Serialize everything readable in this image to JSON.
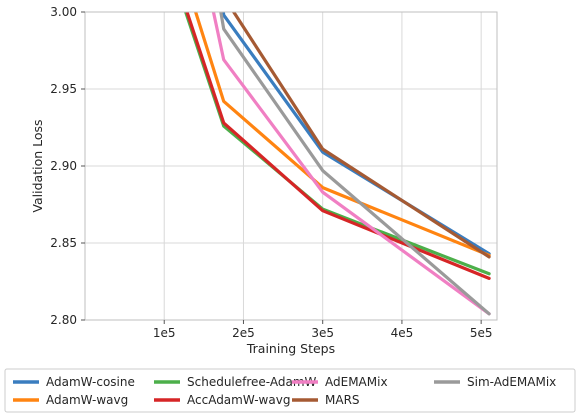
{
  "chart_data": {
    "type": "line",
    "title": "",
    "xlabel": "Training Steps",
    "ylabel": "Validation Loss",
    "xlim": [
      0,
      520000
    ],
    "ylim": [
      2.8,
      3.0
    ],
    "xticks": [
      100000,
      200000,
      300000,
      400000,
      500000
    ],
    "xtick_labels": [
      "1e5",
      "2e5",
      "3e5",
      "4e5",
      "5e5"
    ],
    "yticks": [
      2.8,
      2.85,
      2.9,
      2.95,
      3.0
    ],
    "ytick_labels": [
      "2.80",
      "2.85",
      "2.90",
      "2.95",
      "3.00"
    ],
    "grid": true,
    "legend_position": "bottom-outside",
    "series": [
      {
        "name": "AdamW-cosine",
        "color": "#3a7dbf",
        "x": [
          160000,
          175000,
          300000,
          510000
        ],
        "y": [
          3.06,
          2.998,
          2.909,
          2.843
        ]
      },
      {
        "name": "AdamW-wavg",
        "color": "#ff8411",
        "x": [
          100000,
          175000,
          300000,
          510000
        ],
        "y": [
          3.065,
          2.942,
          2.886,
          2.842
        ]
      },
      {
        "name": "Schedulefree-AdamW",
        "color": "#4caf4a",
        "x": [
          85000,
          175000,
          300000,
          510000
        ],
        "y": [
          3.065,
          2.926,
          2.872,
          2.83
        ]
      },
      {
        "name": "AccAdamW-wavg",
        "color": "#d62526",
        "x": [
          87000,
          175000,
          300000,
          510000
        ],
        "y": [
          3.065,
          2.928,
          2.871,
          2.827
        ]
      },
      {
        "name": "AdEMAMix",
        "color": "#f07fc3",
        "x": [
          135000,
          175000,
          300000,
          510000
        ],
        "y": [
          3.065,
          2.969,
          2.883,
          2.804
        ]
      },
      {
        "name": "MARS",
        "color": "#a55a33",
        "x": [
          170000,
          175000,
          300000,
          510000
        ],
        "y": [
          3.065,
          3.01,
          2.911,
          2.841
        ]
      },
      {
        "name": "Sim-AdEMAMix",
        "color": "#9a9a9a",
        "x": [
          150000,
          175000,
          300000,
          510000
        ],
        "y": [
          3.065,
          2.989,
          2.897,
          2.804
        ]
      }
    ]
  }
}
